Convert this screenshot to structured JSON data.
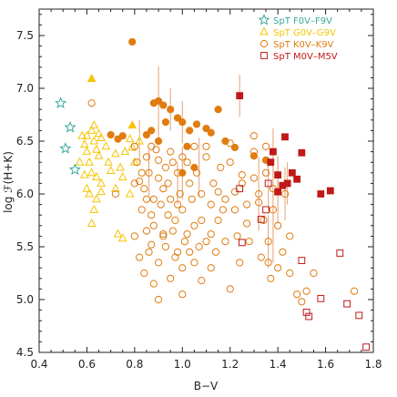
{
  "chart_data": {
    "type": "scatter",
    "title": "",
    "xlabel": "B−V",
    "ylabel": "log ℱ(H+K)",
    "xlim": [
      0.4,
      1.8
    ],
    "ylim": [
      4.5,
      7.75
    ],
    "x_ticks": [
      0.4,
      0.6,
      0.8,
      1.0,
      1.2,
      1.4,
      1.6,
      1.8
    ],
    "x_tick_labels": [
      "0.4",
      "0.6",
      "0.8",
      "1.0",
      "1.2",
      "1.4",
      "1.6",
      "1.8"
    ],
    "y_ticks": [
      4.5,
      5.0,
      5.5,
      6.0,
      6.5,
      7.0,
      7.5
    ],
    "y_tick_labels": [
      "4.5",
      "5.0",
      "5.5",
      "6.0",
      "6.5",
      "7.0",
      "7.5"
    ],
    "grid": false,
    "legend_position": "top-right",
    "series": [
      {
        "name": "SpT F0V–F9V",
        "marker": "star",
        "color": "#3aa89a",
        "points": [
          [
            0.49,
            6.86
          ],
          [
            0.53,
            6.63
          ],
          [
            0.51,
            6.43
          ],
          [
            0.55,
            6.23
          ]
        ]
      },
      {
        "name": "SpT G0V–G9V",
        "marker": "triangle",
        "color": "#f5c400",
        "points": [
          [
            0.58,
            6.55
          ],
          [
            0.59,
            6.47
          ],
          [
            0.6,
            6.55
          ],
          [
            0.6,
            6.4
          ],
          [
            0.61,
            6.3
          ],
          [
            0.62,
            6.6
          ],
          [
            0.63,
            6.5
          ],
          [
            0.64,
            6.42
          ],
          [
            0.65,
            6.36
          ],
          [
            0.66,
            6.53
          ],
          [
            0.62,
            6.2
          ],
          [
            0.64,
            6.16
          ],
          [
            0.66,
            6.1
          ],
          [
            0.6,
            6.05
          ],
          [
            0.57,
            6.3
          ],
          [
            0.59,
            6.18
          ],
          [
            0.68,
            6.45
          ],
          [
            0.69,
            6.3
          ],
          [
            0.7,
            6.22
          ],
          [
            0.72,
            6.38
          ],
          [
            0.74,
            6.25
          ],
          [
            0.75,
            6.16
          ],
          [
            0.76,
            6.4
          ],
          [
            0.78,
            6.52
          ],
          [
            0.79,
            6.44
          ],
          [
            0.63,
            6.65
          ],
          [
            0.65,
            6.57
          ],
          [
            0.62,
            5.72
          ],
          [
            0.64,
            5.95
          ],
          [
            0.66,
            6.02
          ],
          [
            0.72,
            6.05
          ],
          [
            0.73,
            5.62
          ],
          [
            0.75,
            5.58
          ],
          [
            0.78,
            6.0
          ],
          [
            0.8,
            6.3
          ],
          [
            0.82,
            6.5
          ],
          [
            0.61,
            6.0
          ],
          [
            0.63,
            5.85
          ]
        ],
        "filled_points": [
          [
            0.62,
            7.09
          ],
          [
            0.79,
            6.65
          ]
        ]
      },
      {
        "name": "SpT K0V–K9V",
        "marker": "circle",
        "color": "#e07c10",
        "points": [
          [
            0.62,
            6.86
          ],
          [
            0.72,
            6.0
          ],
          [
            0.8,
            6.45
          ],
          [
            0.81,
            6.3
          ],
          [
            0.82,
            6.12
          ],
          [
            0.84,
            6.05
          ],
          [
            0.85,
            5.95
          ],
          [
            0.86,
            6.2
          ],
          [
            0.87,
            5.8
          ],
          [
            0.88,
            5.7
          ],
          [
            0.89,
            6.42
          ],
          [
            0.9,
            6.32
          ],
          [
            0.9,
            6.15
          ],
          [
            0.91,
            5.9
          ],
          [
            0.92,
            5.6
          ],
          [
            0.93,
            6.25
          ],
          [
            0.94,
            6.1
          ],
          [
            0.95,
            5.95
          ],
          [
            0.96,
            6.3
          ],
          [
            0.97,
            5.75
          ],
          [
            0.98,
            6.2
          ],
          [
            0.99,
            6.0
          ],
          [
            1.0,
            5.85
          ],
          [
            1.01,
            5.55
          ],
          [
            1.02,
            6.3
          ],
          [
            1.03,
            6.1
          ],
          [
            1.04,
            5.95
          ],
          [
            1.05,
            5.7
          ],
          [
            1.06,
            6.2
          ],
          [
            1.07,
            5.5
          ],
          [
            1.08,
            6.0
          ],
          [
            1.1,
            6.35
          ],
          [
            1.12,
            5.9
          ],
          [
            1.13,
            6.1
          ],
          [
            1.15,
            5.75
          ],
          [
            1.16,
            6.25
          ],
          [
            1.18,
            5.95
          ],
          [
            1.2,
            6.3
          ],
          [
            1.22,
            5.85
          ],
          [
            1.23,
            5.6
          ],
          [
            1.25,
            6.1
          ],
          [
            1.27,
            5.9
          ],
          [
            1.3,
            6.4
          ],
          [
            1.32,
            6.0
          ],
          [
            1.34,
            5.75
          ],
          [
            1.36,
            5.55
          ],
          [
            1.38,
            5.85
          ],
          [
            1.4,
            5.7
          ],
          [
            1.42,
            5.45
          ],
          [
            1.45,
            5.25
          ],
          [
            1.48,
            5.05
          ],
          [
            1.5,
            4.98
          ],
          [
            1.52,
            5.08
          ],
          [
            0.8,
            5.6
          ],
          [
            0.82,
            5.4
          ],
          [
            0.84,
            5.25
          ],
          [
            0.86,
            5.45
          ],
          [
            0.88,
            5.15
          ],
          [
            0.9,
            5.35
          ],
          [
            0.93,
            5.5
          ],
          [
            0.95,
            5.2
          ],
          [
            0.97,
            5.4
          ],
          [
            1.0,
            5.3
          ],
          [
            1.03,
            5.45
          ],
          [
            1.08,
            5.18
          ],
          [
            1.12,
            5.3
          ],
          [
            0.83,
            5.85
          ],
          [
            0.85,
            5.65
          ],
          [
            0.87,
            5.52
          ],
          [
            0.92,
            5.62
          ],
          [
            0.94,
            5.8
          ],
          [
            0.96,
            5.65
          ],
          [
            0.98,
            5.45
          ],
          [
            1.02,
            5.62
          ],
          [
            1.05,
            5.35
          ],
          [
            1.1,
            5.55
          ],
          [
            1.14,
            5.45
          ],
          [
            1.18,
            5.55
          ],
          [
            1.24,
            5.35
          ],
          [
            1.28,
            5.55
          ],
          [
            1.33,
            5.4
          ],
          [
            1.37,
            5.2
          ],
          [
            1.72,
            5.08
          ],
          [
            1.55,
            5.25
          ],
          [
            0.85,
            6.35
          ],
          [
            0.87,
            6.45
          ],
          [
            0.95,
            6.4
          ],
          [
            1.1,
            6.45
          ],
          [
            1.2,
            6.48
          ],
          [
            1.3,
            6.55
          ],
          [
            1.35,
            6.45
          ],
          [
            0.83,
            6.2
          ],
          [
            0.92,
            6.05
          ],
          [
            1.15,
            6.02
          ],
          [
            1.25,
            6.18
          ],
          [
            1.35,
            6.2
          ],
          [
            1.38,
            6.05
          ],
          [
            0.8,
            6.1
          ],
          [
            0.88,
            5.95
          ],
          [
            1.0,
            6.35
          ],
          [
            1.05,
            6.45
          ],
          [
            1.22,
            6.02
          ],
          [
            1.3,
            6.15
          ],
          [
            1.43,
            6.0
          ],
          [
            1.45,
            5.6
          ],
          [
            0.98,
            5.9
          ],
          [
            1.08,
            5.75
          ],
          [
            1.12,
            5.62
          ],
          [
            1.17,
            5.85
          ],
          [
            1.27,
            5.72
          ],
          [
            1.32,
            5.92
          ],
          [
            1.36,
            5.35
          ],
          [
            0.9,
            5.0
          ],
          [
            1.0,
            5.05
          ],
          [
            1.2,
            5.1
          ],
          [
            1.4,
            5.3
          ]
        ],
        "filled_points": [
          [
            0.79,
            7.44
          ],
          [
            0.88,
            6.86
          ],
          [
            0.9,
            6.88
          ],
          [
            0.92,
            6.84
          ],
          [
            0.95,
            6.8
          ],
          [
            0.98,
            6.72
          ],
          [
            1.0,
            6.68
          ],
          [
            1.03,
            6.6
          ],
          [
            1.06,
            6.66
          ],
          [
            1.1,
            6.62
          ],
          [
            1.12,
            6.58
          ],
          [
            1.15,
            6.8
          ],
          [
            1.18,
            6.5
          ],
          [
            1.22,
            6.44
          ],
          [
            1.3,
            6.36
          ],
          [
            1.35,
            6.32
          ],
          [
            0.7,
            6.56
          ],
          [
            0.73,
            6.52
          ],
          [
            0.75,
            6.55
          ],
          [
            0.87,
            6.6
          ],
          [
            0.9,
            6.5
          ],
          [
            0.93,
            6.68
          ],
          [
            0.85,
            6.56
          ],
          [
            1.0,
            6.2
          ],
          [
            1.05,
            6.25
          ],
          [
            1.02,
            6.45
          ]
        ]
      },
      {
        "name": "SpT M0V–M5V",
        "marker": "square",
        "color": "#c01818",
        "points": [
          [
            1.36,
            6.1
          ],
          [
            1.35,
            5.85
          ],
          [
            1.33,
            5.76
          ],
          [
            1.24,
            6.05
          ],
          [
            1.25,
            5.54
          ],
          [
            1.5,
            5.37
          ],
          [
            1.58,
            5.01
          ],
          [
            1.53,
            4.84
          ],
          [
            1.52,
            4.88
          ],
          [
            1.66,
            5.44
          ],
          [
            1.69,
            4.96
          ],
          [
            1.74,
            4.85
          ],
          [
            1.77,
            4.55
          ]
        ],
        "filled_points": [
          [
            1.24,
            6.93
          ],
          [
            1.37,
            6.3
          ],
          [
            1.38,
            6.4
          ],
          [
            1.4,
            6.18
          ],
          [
            1.4,
            6.02
          ],
          [
            1.43,
            6.54
          ],
          [
            1.42,
            6.08
          ],
          [
            1.44,
            6.1
          ],
          [
            1.46,
            6.2
          ],
          [
            1.48,
            6.14
          ],
          [
            1.5,
            6.39
          ],
          [
            1.58,
            6.0
          ],
          [
            1.62,
            6.03
          ]
        ]
      }
    ]
  }
}
